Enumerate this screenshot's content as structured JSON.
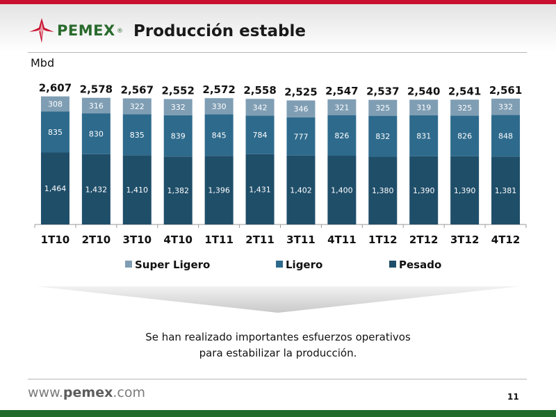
{
  "header": {
    "logo_text": "PEMEX",
    "logo_reg": "®",
    "title": "Producción estable"
  },
  "chart_data": {
    "type": "bar",
    "stacked": true,
    "ylabel": "Mbd",
    "categories": [
      "1T10",
      "2T10",
      "3T10",
      "4T10",
      "1T11",
      "2T11",
      "3T11",
      "4T11",
      "1T12",
      "2T12",
      "3T12",
      "4T12"
    ],
    "totals": [
      2607,
      2578,
      2567,
      2552,
      2572,
      2558,
      2525,
      2547,
      2537,
      2540,
      2541,
      2561
    ],
    "totals_labels": [
      "2,607",
      "2,578",
      "2,567",
      "2,552",
      "2,572",
      "2,558",
      "2,525",
      "2,547",
      "2,537",
      "2,540",
      "2,541",
      "2,561"
    ],
    "series": [
      {
        "name": "Pesado",
        "color": "#1f4e69",
        "values": [
          1464,
          1432,
          1410,
          1382,
          1396,
          1431,
          1402,
          1400,
          1380,
          1390,
          1390,
          1381
        ],
        "labels": [
          "1,464",
          "1,432",
          "1,410",
          "1,382",
          "1,396",
          "1,431",
          "1,402",
          "1,400",
          "1,380",
          "1,390",
          "1,390",
          "1,381"
        ]
      },
      {
        "name": "Ligero",
        "color": "#2e6a8c",
        "values": [
          835,
          830,
          835,
          839,
          845,
          784,
          777,
          826,
          832,
          831,
          826,
          848
        ],
        "labels": [
          "835",
          "830",
          "835",
          "839",
          "845",
          "784",
          "777",
          "826",
          "832",
          "831",
          "826",
          "848"
        ]
      },
      {
        "name": "Super Ligero",
        "color": "#7f9eb4",
        "values": [
          308,
          316,
          322,
          332,
          330,
          342,
          346,
          321,
          325,
          319,
          325,
          332
        ],
        "labels": [
          "308",
          "316",
          "322",
          "332",
          "330",
          "342",
          "346",
          "321",
          "325",
          "319",
          "325",
          "332"
        ]
      }
    ],
    "legend_order": [
      "Super Ligero",
      "Ligero",
      "Pesado"
    ],
    "legend_placement": "bottom",
    "ylim": [
      0,
      3000
    ],
    "grid": false
  },
  "message": {
    "line1": "Se han realizado importantes esfuerzos operativos",
    "line2": "para estabilizar la producción."
  },
  "footer": {
    "url_prefix": "www.",
    "url_brand": "pemex",
    "url_suffix": ".com",
    "page": "11"
  }
}
